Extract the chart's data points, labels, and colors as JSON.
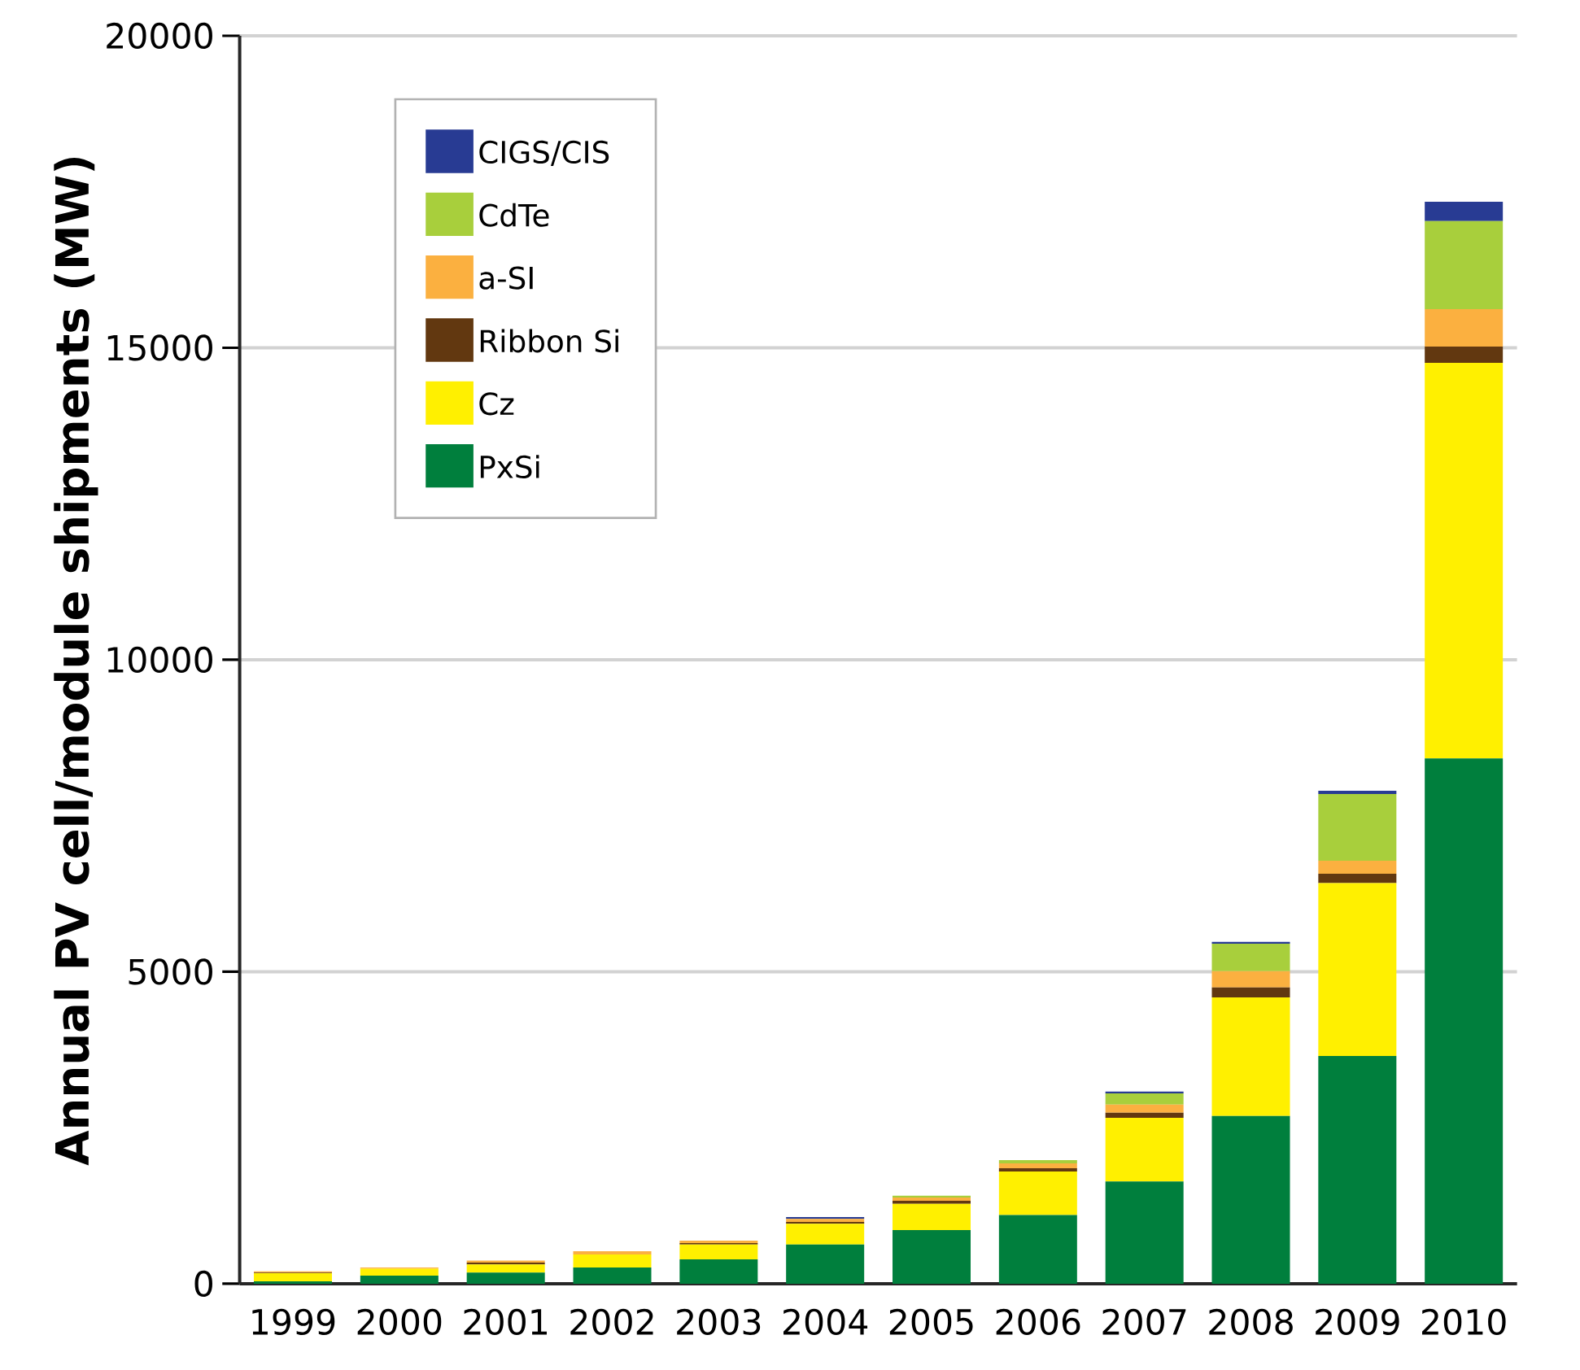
{
  "chart_data": {
    "type": "bar",
    "stacked": true,
    "ylabel": "Annual PV cell/module shipments (MW)",
    "categories": [
      "1999",
      "2000",
      "2001",
      "2002",
      "2003",
      "2004",
      "2005",
      "2006",
      "2007",
      "2008",
      "2009",
      "2010"
    ],
    "series": [
      {
        "name": "PxSi",
        "color": "#007f3d",
        "values": [
          40,
          130,
          180,
          260,
          390,
          630,
          860,
          1100,
          1640,
          2690,
          3650,
          8420
        ]
      },
      {
        "name": "Cz",
        "color": "#fff000",
        "values": [
          130,
          110,
          130,
          210,
          240,
          330,
          420,
          700,
          1020,
          1900,
          2770,
          6340
        ]
      },
      {
        "name": "Ribbon Si",
        "color": "#623810",
        "values": [
          10,
          0,
          30,
          0,
          20,
          30,
          50,
          50,
          80,
          160,
          150,
          260
        ]
      },
      {
        "name": "a-SI",
        "color": "#fbb040",
        "values": [
          20,
          20,
          30,
          50,
          40,
          50,
          50,
          80,
          130,
          260,
          210,
          600
        ]
      },
      {
        "name": "CdTe",
        "color": "#a8cf3c",
        "values": [
          0,
          0,
          0,
          0,
          0,
          0,
          30,
          50,
          180,
          440,
          1070,
          1410
        ]
      },
      {
        "name": "CIGS/CIS",
        "color": "#283b93",
        "values": [
          0,
          0,
          0,
          0,
          0,
          30,
          0,
          0,
          30,
          30,
          50,
          310
        ]
      }
    ],
    "ylim": [
      0,
      20000
    ],
    "yticks": [
      0,
      5000,
      10000,
      15000,
      20000
    ],
    "grid": "y",
    "legend": "top left"
  }
}
